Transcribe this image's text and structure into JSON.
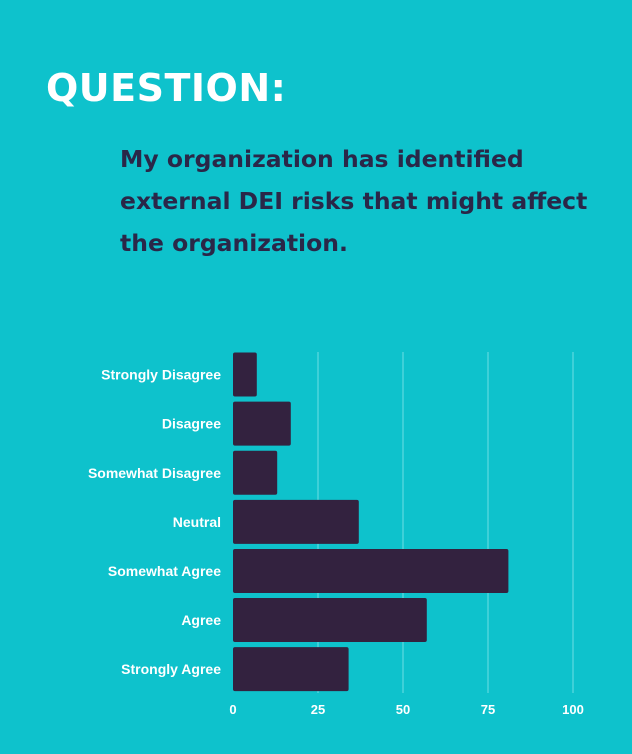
{
  "heading": "QUESTION:",
  "question": "My organization has identified external DEI risks that might affect the organization.",
  "colors": {
    "background": "#0ec2cc",
    "bar": "#33223f",
    "question_text": "#2a2748",
    "grid": "#6fdde3"
  },
  "chart_data": {
    "type": "bar",
    "orientation": "horizontal",
    "categories": [
      "Strongly Disagree",
      "Disagree",
      "Somewhat Disagree",
      "Neutral",
      "Somewhat Agree",
      "Agree",
      "Strongly Agree"
    ],
    "values": [
      7,
      17,
      13,
      37,
      81,
      57,
      34
    ],
    "xlim": [
      0,
      100
    ],
    "xticks": [
      0,
      25,
      50,
      75,
      100
    ],
    "grid": true,
    "legend": "none"
  }
}
